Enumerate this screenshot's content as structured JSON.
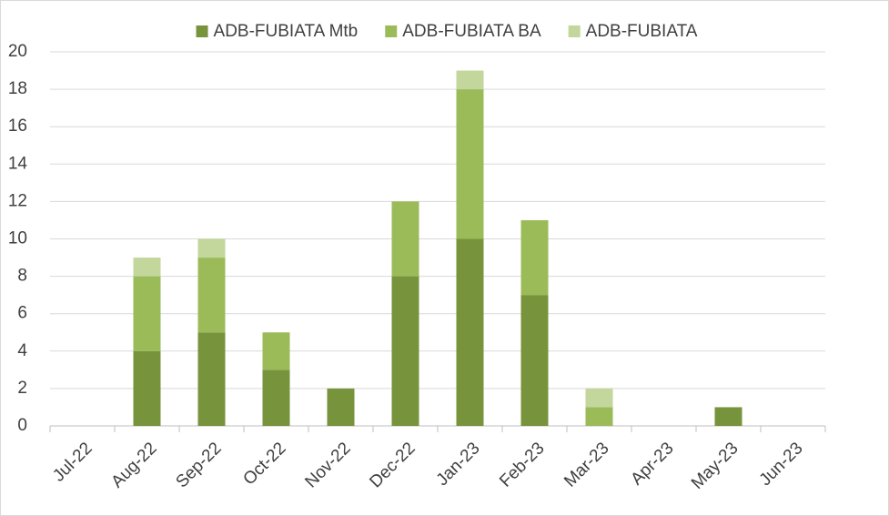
{
  "chart_data": {
    "type": "stacked_bar",
    "categories": [
      "Jul-22",
      "Aug-22",
      "Sep-22",
      "Oct-22",
      "Nov-22",
      "Dec-22",
      "Jan-23",
      "Feb-23",
      "Mar-23",
      "Apr-23",
      "May-23",
      "Jun-23"
    ],
    "series": [
      {
        "name": "ADB-FUBIATA Mtb",
        "color": "#77933c",
        "values": [
          0,
          4,
          5,
          3,
          2,
          8,
          10,
          7,
          0,
          0,
          1,
          0
        ]
      },
      {
        "name": "ADB-FUBIATA BA",
        "color": "#9bbb59",
        "values": [
          0,
          4,
          4,
          2,
          0,
          4,
          8,
          4,
          1,
          0,
          0,
          0
        ]
      },
      {
        "name": "ADB-FUBIATA",
        "color": "#c3d69b",
        "values": [
          0,
          1,
          1,
          0,
          0,
          0,
          1,
          0,
          1,
          0,
          0,
          0
        ]
      }
    ],
    "ylim": [
      0,
      20
    ],
    "yticks": [
      0,
      2,
      4,
      6,
      8,
      10,
      12,
      14,
      16,
      18,
      20
    ],
    "grid": true,
    "legend": "top"
  }
}
